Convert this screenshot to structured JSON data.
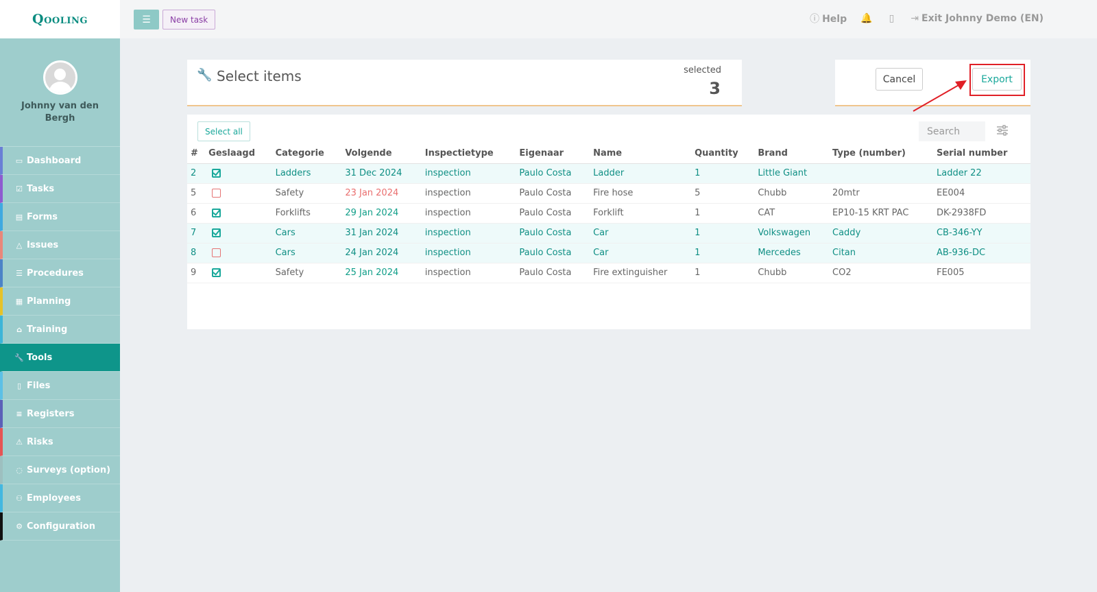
{
  "app": {
    "logo": "Qooling"
  },
  "sidebar": {
    "user_name": "Johnny van den Bergh",
    "items": [
      {
        "label": "Dashboard",
        "icon": "monitor-icon",
        "glyph": "▭",
        "color": "#6a7fd6",
        "active": false
      },
      {
        "label": "Tasks",
        "icon": "check-square-icon",
        "glyph": "☑",
        "color": "#8e5bd0",
        "active": false
      },
      {
        "label": "Forms",
        "icon": "file-icon",
        "glyph": "▤",
        "color": "#3fa9e0",
        "active": false
      },
      {
        "label": "Issues",
        "icon": "bell-icon",
        "glyph": "△",
        "color": "#e9877a",
        "active": false
      },
      {
        "label": "Procedures",
        "icon": "list-icon",
        "glyph": "☰",
        "color": "#4c83c7",
        "active": false
      },
      {
        "label": "Planning",
        "icon": "calendar-icon",
        "glyph": "▦",
        "color": "#e6c229",
        "active": false
      },
      {
        "label": "Training",
        "icon": "graduation-cap-icon",
        "glyph": "⌂",
        "color": "#3cb5d8",
        "active": false
      },
      {
        "label": "Tools",
        "icon": "wrench-icon",
        "glyph": "🔧",
        "color": "#0e958a",
        "active": true
      },
      {
        "label": "Files",
        "icon": "document-icon",
        "glyph": "▯",
        "color": "#5cc0e6",
        "active": false
      },
      {
        "label": "Registers",
        "icon": "menu-lines-icon",
        "glyph": "≡",
        "color": "#5b60b8",
        "active": false
      },
      {
        "label": "Risks",
        "icon": "warning-icon",
        "glyph": "⚠",
        "color": "#e65454",
        "active": false
      },
      {
        "label": "Surveys (option)",
        "icon": "chat-icon",
        "glyph": "◌",
        "color": "#9dbfbf",
        "active": false
      },
      {
        "label": "Employees",
        "icon": "users-icon",
        "glyph": "⚇",
        "color": "#43b8e0",
        "active": false
      },
      {
        "label": "Configuration",
        "icon": "gear-icon",
        "glyph": "⚙",
        "color": "#111111",
        "active": false
      }
    ]
  },
  "topbar": {
    "menu_icon": "hamburger-icon",
    "new_task_label": "New task",
    "help_label": "Help",
    "exit_label": "Exit Johnny Demo (EN)"
  },
  "header": {
    "title": "Select items",
    "selected_label": "selected",
    "selected_count": "3"
  },
  "actions": {
    "cancel_label": "Cancel",
    "export_label": "Export"
  },
  "table": {
    "select_all_label": "Select all",
    "search_placeholder": "Search",
    "columns": [
      "#",
      "Geslaagd",
      "Categorie",
      "Volgende",
      "Inspectietype",
      "Eigenaar",
      "Name",
      "Quantity",
      "Brand",
      "Type (number)",
      "Serial number"
    ],
    "rows": [
      {
        "num": "2",
        "passed": true,
        "category": "Ladders",
        "next": "31 Dec 2024",
        "next_status": "ok",
        "type": "inspection",
        "owner": "Paulo Costa",
        "name": "Ladder",
        "quantity": "1",
        "brand": "Little Giant",
        "type_number": "",
        "serial": "Ladder 22",
        "highlighted": true
      },
      {
        "num": "5",
        "passed": false,
        "category": "Safety",
        "next": "23 Jan 2024",
        "next_status": "overdue",
        "type": "inspection",
        "owner": "Paulo Costa",
        "name": "Fire hose",
        "quantity": "5",
        "brand": "Chubb",
        "type_number": "20mtr",
        "serial": "EE004",
        "highlighted": false
      },
      {
        "num": "6",
        "passed": true,
        "category": "Forklifts",
        "next": "29 Jan 2024",
        "next_status": "ok",
        "type": "inspection",
        "owner": "Paulo Costa",
        "name": "Forklift",
        "quantity": "1",
        "brand": "CAT",
        "type_number": "EP10-15 KRT PAC",
        "serial": "DK-2938FD",
        "highlighted": false
      },
      {
        "num": "7",
        "passed": true,
        "category": "Cars",
        "next": "31 Jan 2024",
        "next_status": "ok",
        "type": "inspection",
        "owner": "Paulo Costa",
        "name": "Car",
        "quantity": "1",
        "brand": "Volkswagen",
        "type_number": "Caddy",
        "serial": "CB-346-YY",
        "highlighted": true
      },
      {
        "num": "8",
        "passed": false,
        "category": "Cars",
        "next": "24 Jan 2024",
        "next_status": "overdue",
        "type": "inspection",
        "owner": "Paulo Costa",
        "name": "Car",
        "quantity": "1",
        "brand": "Mercedes",
        "type_number": "Citan",
        "serial": "AB-936-DC",
        "highlighted": true
      },
      {
        "num": "9",
        "passed": true,
        "category": "Safety",
        "next": "25 Jan 2024",
        "next_status": "ok",
        "type": "inspection",
        "owner": "Paulo Costa",
        "name": "Fire extinguisher",
        "quantity": "1",
        "brand": "Chubb",
        "type_number": "CO2",
        "serial": "FE005",
        "highlighted": false
      }
    ]
  },
  "colors": {
    "accent": "#1aa89b",
    "sidebar_bg": "#9ecdcc",
    "active_nav": "#0e958a",
    "overdue": "#ea6e6e",
    "annotation": "#e01f26"
  }
}
